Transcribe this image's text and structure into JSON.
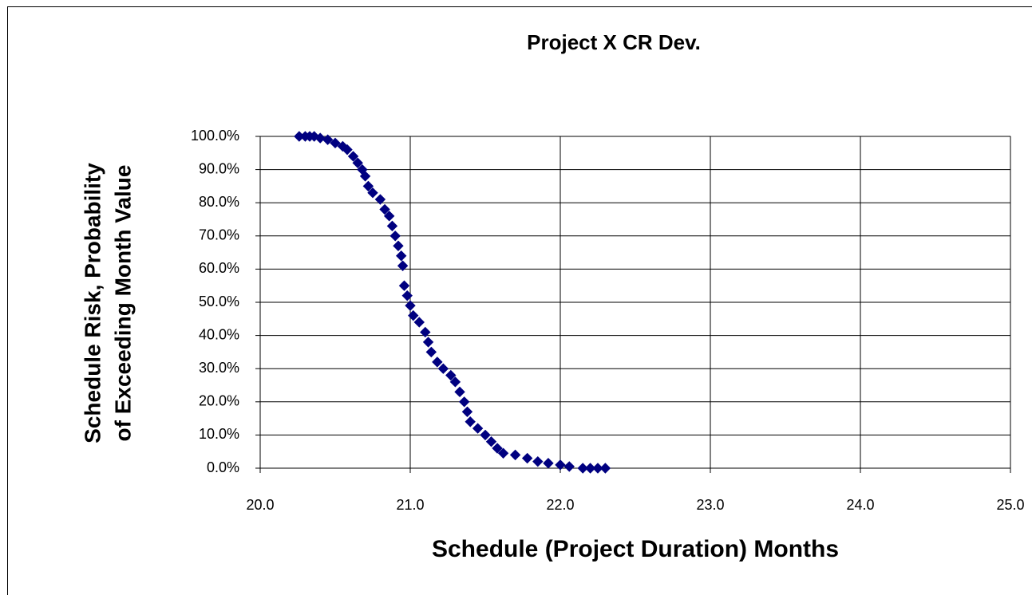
{
  "chart_data": {
    "type": "scatter",
    "title": "Project X CR Dev.",
    "xlabel": "Schedule (Project Duration) Months",
    "ylabel": [
      "Schedule Risk, Probability",
      "of Exceeding Month Value"
    ],
    "color": "#000080",
    "grid": true,
    "xlim": [
      20,
      25
    ],
    "xticks": [
      {
        "value": 20,
        "label": "20.0"
      },
      {
        "value": 21,
        "label": "21.0"
      },
      {
        "value": 22,
        "label": "22.0"
      },
      {
        "value": 23,
        "label": "23.0"
      },
      {
        "value": 24,
        "label": "24.0"
      },
      {
        "value": 25,
        "label": "25.0"
      }
    ],
    "ylim": [
      0,
      100
    ],
    "yticks": [
      {
        "value": 0,
        "label": "0.0%"
      },
      {
        "value": 10,
        "label": "10.0%"
      },
      {
        "value": 20,
        "label": "20.0%"
      },
      {
        "value": 30,
        "label": "30.0%"
      },
      {
        "value": 40,
        "label": "40.0%"
      },
      {
        "value": 50,
        "label": "50.0%"
      },
      {
        "value": 60,
        "label": "60.0%"
      },
      {
        "value": 70,
        "label": "70.0%"
      },
      {
        "value": 80,
        "label": "80.0%"
      },
      {
        "value": 90,
        "label": "90.0%"
      },
      {
        "value": 100,
        "label": "100.0%"
      }
    ],
    "x": [
      20.26,
      20.3,
      20.33,
      20.36,
      20.4,
      20.45,
      20.5,
      20.55,
      20.58,
      20.62,
      20.65,
      20.68,
      20.7,
      20.72,
      20.75,
      20.8,
      20.83,
      20.86,
      20.88,
      20.9,
      20.92,
      20.94,
      20.95,
      20.96,
      20.98,
      21.0,
      21.02,
      21.06,
      21.1,
      21.12,
      21.14,
      21.18,
      21.22,
      21.27,
      21.3,
      21.33,
      21.36,
      21.38,
      21.4,
      21.45,
      21.5,
      21.54,
      21.58,
      21.62,
      21.7,
      21.78,
      21.85,
      21.92,
      22.0,
      22.06,
      22.15,
      22.2,
      22.25,
      22.3
    ],
    "values": [
      100,
      100,
      100,
      100,
      99.5,
      99,
      98,
      97,
      96,
      94,
      92,
      90,
      88,
      85,
      83,
      81,
      78,
      76,
      73,
      70,
      67,
      64,
      61,
      55,
      52,
      49,
      46,
      44,
      41,
      38,
      35,
      32,
      30,
      28,
      26,
      23,
      20,
      17,
      14,
      12,
      10,
      8,
      6,
      4.5,
      4,
      3,
      2,
      1.5,
      1,
      0.5,
      0,
      0,
      0,
      0
    ]
  }
}
